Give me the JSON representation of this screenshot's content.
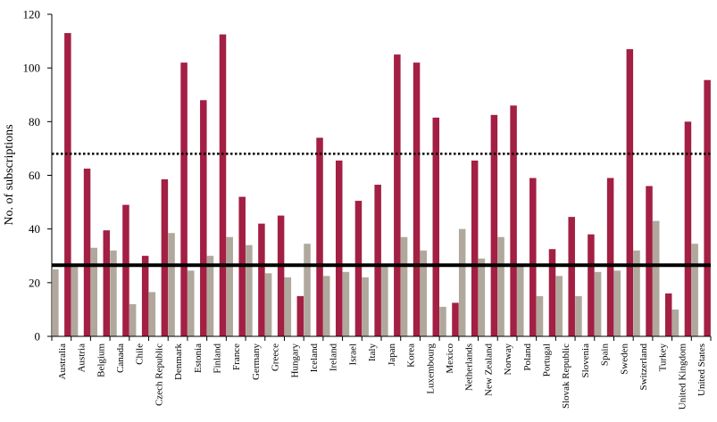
{
  "chart_data": {
    "type": "bar",
    "ylabel": "No. of subscriptions",
    "xlabel": "",
    "ylim": [
      0,
      120
    ],
    "yticks": [
      0,
      20,
      40,
      60,
      80,
      100,
      120
    ],
    "grid": false,
    "categories": [
      "Australia",
      "Austria",
      "Belgium",
      "Canada",
      "Chile",
      "Czech Republic",
      "Denmark",
      "Estonia",
      "Finland",
      "France",
      "Germany",
      "Greece",
      "Hungary",
      "Iceland",
      "Ireland",
      "Israel",
      "Italy",
      "Japan",
      "Korea",
      "Luxembourg",
      "Mexico",
      "Netherlands",
      "New Zealand",
      "Norway",
      "Poland",
      "Portugal",
      "Slovak Republic",
      "Slovenia",
      "Spain",
      "Sweden",
      "Switzerland",
      "Turkey",
      "United Kingdom",
      "United States"
    ],
    "series": [
      {
        "color": "#b0a89c",
        "values": [
          25,
          26,
          33,
          32,
          12,
          16.5,
          38.5,
          24.5,
          30,
          37,
          34,
          23.5,
          22,
          34.5,
          22.5,
          24,
          22,
          27,
          37,
          32,
          11,
          40,
          29,
          37,
          26,
          15,
          22.5,
          15,
          24,
          24.5,
          32,
          43,
          10,
          34.5
        ]
      },
      {
        "color": "#a31f43",
        "values": [
          113,
          62.5,
          39.5,
          49,
          30,
          58.5,
          102,
          88,
          112.5,
          52,
          42,
          45,
          15,
          74,
          65.5,
          50.5,
          56.5,
          105,
          102,
          81.5,
          12.5,
          65.5,
          82.5,
          86,
          59,
          32.5,
          44.5,
          38,
          59,
          107,
          56,
          16,
          80,
          95.5
        ]
      }
    ],
    "reference_lines": [
      {
        "style": "solid",
        "value": 26.5,
        "color": "#000000"
      },
      {
        "style": "dotted",
        "value": 68,
        "color": "#000000"
      }
    ]
  }
}
